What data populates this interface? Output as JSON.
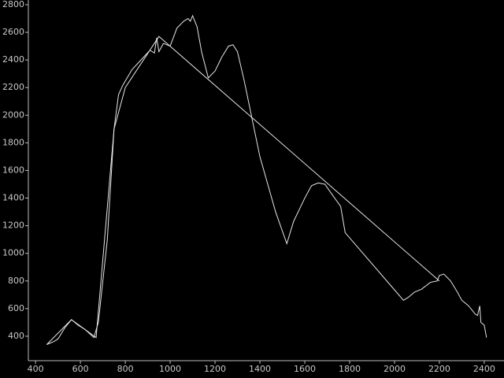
{
  "chart_data": {
    "type": "line",
    "xlim": [
      368,
      2488
    ],
    "ylim": [
      223,
      2834
    ],
    "xticks": [
      400,
      600,
      800,
      1000,
      1200,
      1400,
      1600,
      1800,
      2000,
      2200,
      2400
    ],
    "yticks": [
      400,
      600,
      800,
      1000,
      1200,
      1400,
      1600,
      1800,
      2000,
      2200,
      2400,
      2600,
      2800
    ],
    "series": [
      {
        "color": "#e6e6e6",
        "x": [
          450,
          480,
          500,
          530,
          560,
          590,
          620,
          660,
          680,
          720,
          750,
          770,
          790,
          830,
          870,
          910,
          930,
          940,
          950,
          970,
          1000,
          1030,
          1060,
          1080,
          1090,
          1100,
          1120,
          1140,
          1170,
          1200,
          1230,
          1260,
          1280,
          1300,
          1330,
          1400,
          1470,
          1520,
          1550,
          1600,
          1630,
          1660,
          1690,
          1720,
          1760,
          1780,
          2040,
          2060,
          2090,
          2120,
          2160,
          2190,
          2200,
          2220,
          2250,
          2280,
          2300,
          2330,
          2360,
          2370,
          2380,
          2385,
          2400,
          2410
        ],
        "values": [
          340,
          360,
          380,
          460,
          520,
          480,
          450,
          390,
          500,
          1100,
          1900,
          2150,
          2220,
          2330,
          2400,
          2470,
          2450,
          2560,
          2460,
          2520,
          2500,
          2630,
          2680,
          2700,
          2680,
          2720,
          2640,
          2460,
          2270,
          2320,
          2420,
          2500,
          2510,
          2460,
          2250,
          1700,
          1300,
          1070,
          1230,
          1400,
          1490,
          1510,
          1500,
          1430,
          1340,
          1150,
          660,
          680,
          720,
          740,
          790,
          800,
          840,
          850,
          800,
          720,
          660,
          620,
          560,
          550,
          620,
          500,
          480,
          390
        ]
      },
      {
        "color": "#e6e6e6",
        "x": [
          450,
          560,
          670,
          750,
          800,
          950,
          2200
        ],
        "values": [
          340,
          520,
          390,
          1900,
          2200,
          2570,
          800
        ]
      }
    ]
  }
}
